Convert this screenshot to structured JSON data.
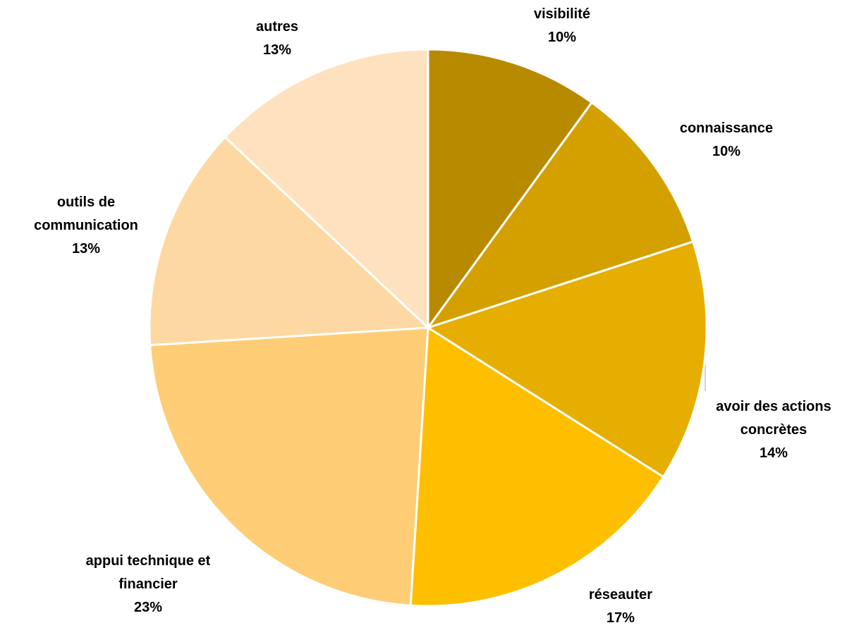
{
  "chart_data": {
    "type": "pie",
    "categories": [
      "visibilité",
      "connaissance",
      "avoir des actions concrètes",
      "réseauter",
      "appui technique et financier",
      "outils de communication",
      "autres"
    ],
    "values": [
      10,
      10,
      14,
      17,
      23,
      13,
      13
    ],
    "value_labels": [
      "10%",
      "10%",
      "14%",
      "17%",
      "23%",
      "13%",
      "13%"
    ],
    "colors": [
      "#b88a00",
      "#d4a000",
      "#e6ae00",
      "#fdbf00",
      "#fecd76",
      "#fed8a2",
      "#fee2c0"
    ]
  }
}
